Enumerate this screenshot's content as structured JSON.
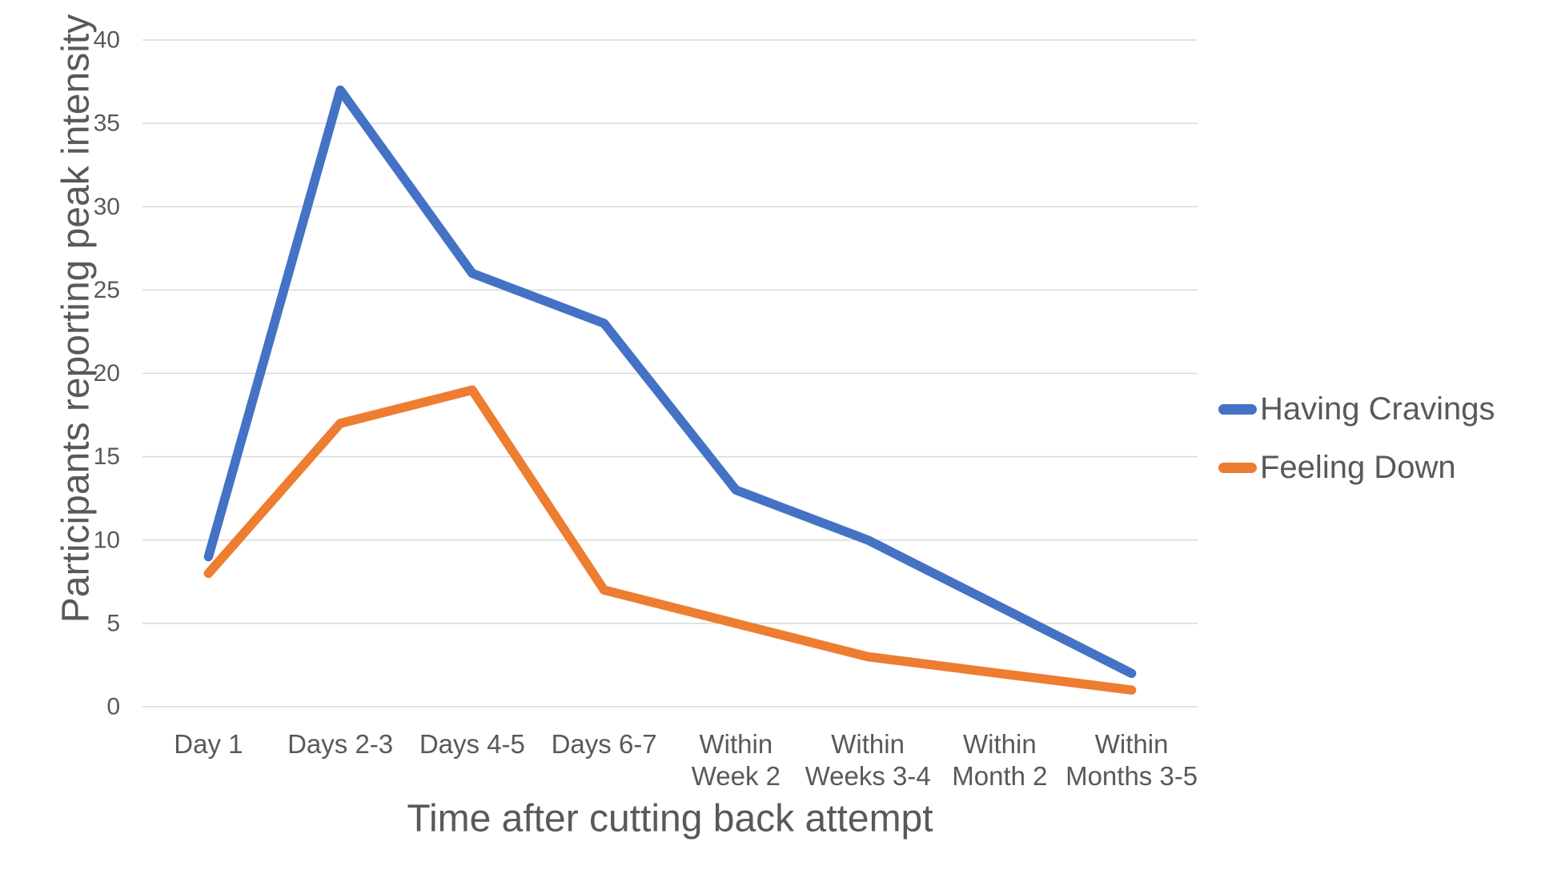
{
  "chart_data": {
    "type": "line",
    "title": "",
    "categories": [
      {
        "label": "Day 1",
        "lines": [
          "Day 1"
        ]
      },
      {
        "label": "Days 2-3",
        "lines": [
          "Days 2-3"
        ]
      },
      {
        "label": "Days 4-5",
        "lines": [
          "Days 4-5"
        ]
      },
      {
        "label": "Days 6-7",
        "lines": [
          "Days 6-7"
        ]
      },
      {
        "label": "Within Week 2",
        "lines": [
          "Within",
          "Week 2"
        ]
      },
      {
        "label": "Within Weeks 3-4",
        "lines": [
          "Within",
          "Weeks 3-4"
        ]
      },
      {
        "label": "Within Month 2",
        "lines": [
          "Within",
          "Month 2"
        ]
      },
      {
        "label": "Within Months 3-5",
        "lines": [
          "Within",
          "Months 3-5"
        ]
      }
    ],
    "series": [
      {
        "name": "Having Cravings",
        "color": "#4472C4",
        "values": [
          9,
          37,
          26,
          23,
          13,
          10,
          6,
          2
        ]
      },
      {
        "name": "Feeling Down",
        "color": "#ED7D31",
        "values": [
          8,
          17,
          19,
          7,
          5,
          3,
          2,
          1
        ]
      }
    ],
    "xlabel": "Time after cutting back attempt",
    "ylabel": "Participants reporting peak intensity",
    "ylim": [
      0,
      40
    ],
    "ytick_step": 5,
    "yticks": [
      0,
      5,
      10,
      15,
      20,
      25,
      30,
      35,
      40
    ],
    "grid": true,
    "legend_position": "right",
    "colors": {
      "axis_text": "#595959",
      "gridline": "#D9D9D9",
      "background": "#FFFFFF"
    }
  }
}
